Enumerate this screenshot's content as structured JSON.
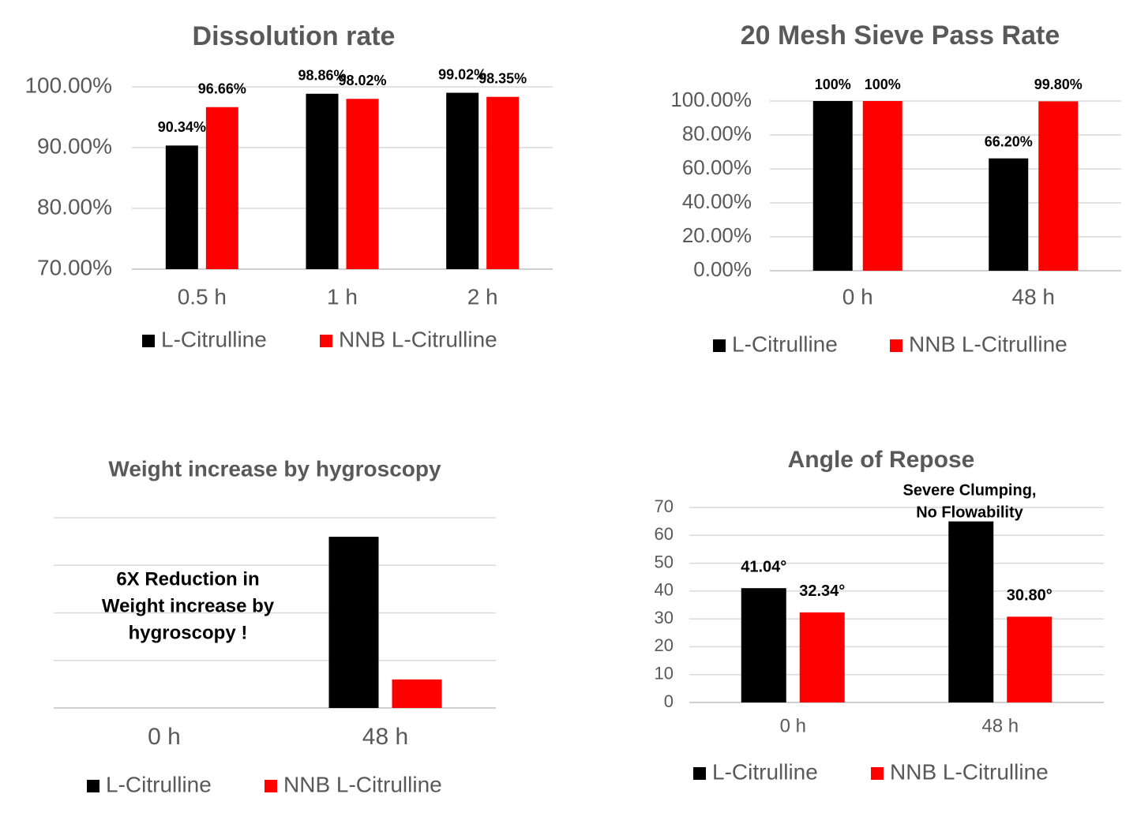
{
  "chart_data": [
    {
      "type": "bar",
      "title": "Dissolution rate",
      "categories": [
        "0.5 h",
        "1 h",
        "2 h"
      ],
      "series": [
        {
          "name": "L-Citrulline",
          "color": "#000000",
          "values": [
            90.34,
            98.86,
            99.02
          ],
          "value_labels": [
            "90.34%",
            "98.86%",
            "99.02%"
          ]
        },
        {
          "name": "NNB L-Citrulline",
          "color": "#ff0000",
          "values": [
            96.66,
            98.02,
            98.35
          ],
          "value_labels": [
            "96.66%",
            "98.02%",
            "98.35%"
          ]
        }
      ],
      "ylim": [
        70,
        100
      ],
      "yticks": [
        {
          "value": 70,
          "label": "70.00%"
        },
        {
          "value": 80,
          "label": "80.00%"
        },
        {
          "value": 90,
          "label": "90.00%"
        },
        {
          "value": 100,
          "label": "100.00%"
        }
      ],
      "grid": true,
      "legend": "bottom"
    },
    {
      "type": "bar",
      "title": "20 Mesh Sieve Pass Rate",
      "categories": [
        "0 h",
        "48 h"
      ],
      "series": [
        {
          "name": "L-Citrulline",
          "color": "#000000",
          "values": [
            100,
            66.2
          ],
          "value_labels": [
            "100%",
            "66.20%"
          ]
        },
        {
          "name": "NNB L-Citrulline",
          "color": "#ff0000",
          "values": [
            100,
            99.8
          ],
          "value_labels": [
            "100%",
            "99.80%"
          ]
        }
      ],
      "ylim": [
        0,
        100
      ],
      "yticks": [
        {
          "value": 0,
          "label": "0.00%"
        },
        {
          "value": 20,
          "label": "20.00%"
        },
        {
          "value": 40,
          "label": "40.00%"
        },
        {
          "value": 60,
          "label": "60.00%"
        },
        {
          "value": 80,
          "label": "80.00%"
        },
        {
          "value": 100,
          "label": "100.00%"
        }
      ],
      "grid": true,
      "legend": "bottom"
    },
    {
      "type": "bar",
      "title": "Weight increase by hygroscopy",
      "categories": [
        "0 h",
        "48 h"
      ],
      "series": [
        {
          "name": "L-Citrulline",
          "color": "#000000",
          "values": [
            0,
            3.6
          ]
        },
        {
          "name": "NNB L-Citrulline",
          "color": "#ff0000",
          "values": [
            0,
            0.6
          ]
        }
      ],
      "ylim": [
        0,
        4
      ],
      "yticks": [
        0,
        1,
        2,
        3,
        4
      ],
      "tick_labels": false,
      "grid": true,
      "legend": "bottom",
      "annotation": [
        "6X Reduction in",
        "Weight increase by",
        "hygroscopy !"
      ]
    },
    {
      "type": "bar",
      "title": "Angle of Repose",
      "categories": [
        "0 h",
        "48 h"
      ],
      "series": [
        {
          "name": "L-Citrulline",
          "color": "#000000",
          "values": [
            41.04,
            65
          ],
          "value_labels": [
            "41.04°",
            null
          ]
        },
        {
          "name": "NNB L-Citrulline",
          "color": "#ff0000",
          "values": [
            32.34,
            30.8
          ],
          "value_labels": [
            "32.34°",
            "30.80°"
          ]
        }
      ],
      "ylim": [
        0,
        70
      ],
      "yticks": [
        0,
        10,
        20,
        30,
        40,
        50,
        60,
        70
      ],
      "grid": true,
      "legend": "bottom",
      "annotation": [
        "Severe Clumping,",
        "No Flowability"
      ]
    }
  ]
}
